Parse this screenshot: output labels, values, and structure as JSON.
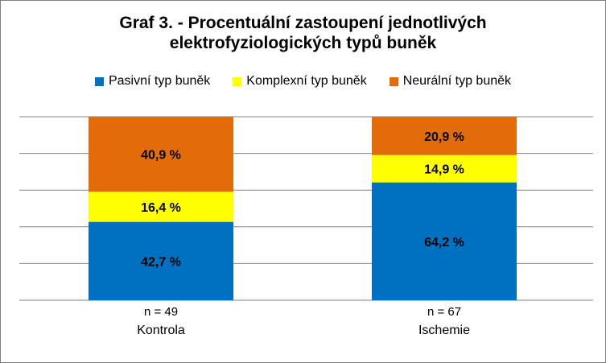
{
  "chart_data": {
    "type": "bar",
    "stacked": true,
    "title_lines": [
      "Graf 3. - Procentuální zastoupení jednotlivých",
      "elektrofyziologických typů buněk"
    ],
    "categories": [
      "Kontrola",
      "Ischemie"
    ],
    "category_notes": [
      "n = 49",
      "n = 67"
    ],
    "series": [
      {
        "name": "Pasivní typ buněk",
        "color": "#0070c0",
        "values": [
          42.7,
          64.2
        ],
        "labels": [
          "42,7 %",
          "64,2 %"
        ]
      },
      {
        "name": "Komplexní typ buněk",
        "color": "#ffff00",
        "values": [
          16.4,
          14.9
        ],
        "labels": [
          "16,4 %",
          "14,9 %"
        ]
      },
      {
        "name": "Neurální typ buněk",
        "color": "#e36c0a",
        "values": [
          40.9,
          20.9
        ],
        "labels": [
          "40,9 %",
          "20,9 %"
        ]
      }
    ],
    "ylim": [
      0,
      100
    ],
    "grid": true,
    "legend_position": "top"
  }
}
